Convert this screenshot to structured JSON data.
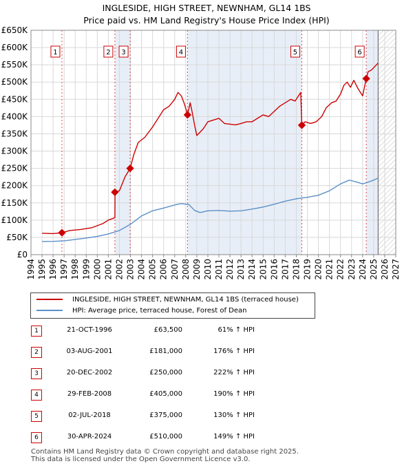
{
  "title": {
    "line1": "INGLESIDE, HIGH STREET, NEWNHAM, GL14 1BS",
    "line2": "Price paid vs. HM Land Registry's House Price Index (HPI)"
  },
  "chart_data": {
    "type": "line",
    "ylim": [
      0,
      650000
    ],
    "xlim": [
      1994,
      2027
    ],
    "y_ticks": [
      0,
      50000,
      100000,
      150000,
      200000,
      250000,
      300000,
      350000,
      400000,
      450000,
      500000,
      550000,
      600000,
      650000
    ],
    "y_tick_labels": [
      "£0",
      "£50K",
      "£100K",
      "£150K",
      "£200K",
      "£250K",
      "£300K",
      "£350K",
      "£400K",
      "£450K",
      "£500K",
      "£550K",
      "£600K",
      "£650K"
    ],
    "x_ticks": [
      1994,
      1995,
      1996,
      1997,
      1998,
      1999,
      2000,
      2001,
      2002,
      2003,
      2004,
      2005,
      2006,
      2007,
      2008,
      2009,
      2010,
      2011,
      2012,
      2013,
      2014,
      2015,
      2016,
      2017,
      2018,
      2019,
      2020,
      2021,
      2022,
      2023,
      2024,
      2025,
      2026,
      2027
    ],
    "data_end_year": 2025.4,
    "grid": true,
    "colors": {
      "property": "#cc0000",
      "hpi": "#5b8fc9",
      "plot_bg": "#ffffff",
      "band": "#e8eef7",
      "hatch": "#bbbbbb"
    },
    "series": [
      {
        "name": "INGLESIDE, HIGH STREET, NEWNHAM, GL14 1BS (terraced house)",
        "x": [
          1995.0,
          1996.0,
          1996.8,
          1997.5,
          1998.5,
          1999.5,
          2000.5,
          2001.0,
          2001.59,
          2001.6,
          2002.0,
          2002.5,
          2002.97,
          2003.3,
          2003.7,
          2004.3,
          2005.0,
          2005.5,
          2006.0,
          2006.5,
          2007.0,
          2007.3,
          2007.6,
          2007.9,
          2008.16,
          2008.4,
          2008.6,
          2008.8,
          2009.0,
          2009.3,
          2009.6,
          2010.0,
          2010.5,
          2011.0,
          2011.5,
          2012.0,
          2012.5,
          2013.0,
          2013.5,
          2014.0,
          2014.5,
          2015.0,
          2015.5,
          2016.0,
          2016.5,
          2017.0,
          2017.5,
          2017.9,
          2018.4,
          2018.5,
          2018.8,
          2019.3,
          2019.8,
          2020.3,
          2020.7,
          2021.2,
          2021.6,
          2022.0,
          2022.3,
          2022.6,
          2022.9,
          2023.2,
          2023.6,
          2024.0,
          2024.33,
          2024.5,
          2024.8,
          2025.1,
          2025.4
        ],
        "values": [
          62000,
          61000,
          63500,
          70000,
          73000,
          78000,
          90000,
          100000,
          107000,
          181000,
          185000,
          225000,
          250000,
          290000,
          325000,
          340000,
          370000,
          395000,
          420000,
          430000,
          450000,
          470000,
          460000,
          435000,
          405000,
          440000,
          410000,
          375000,
          345000,
          355000,
          365000,
          385000,
          390000,
          395000,
          380000,
          378000,
          376000,
          380000,
          385000,
          385000,
          395000,
          405000,
          400000,
          415000,
          430000,
          440000,
          450000,
          445000,
          470000,
          375000,
          385000,
          380000,
          385000,
          400000,
          425000,
          440000,
          445000,
          465000,
          490000,
          500000,
          485000,
          505000,
          480000,
          460000,
          510000,
          530000,
          535000,
          545000,
          555000
        ]
      },
      {
        "name": "HPI: Average price, terraced house, Forest of Dean",
        "x": [
          1995.0,
          1996.0,
          1997.0,
          1998.0,
          1999.0,
          2000.0,
          2001.0,
          2002.0,
          2003.0,
          2004.0,
          2005.0,
          2006.0,
          2007.0,
          2007.6,
          2008.3,
          2008.8,
          2009.3,
          2010.0,
          2011.0,
          2012.0,
          2013.0,
          2014.0,
          2015.0,
          2016.0,
          2017.0,
          2018.0,
          2019.0,
          2020.0,
          2021.0,
          2022.0,
          2022.8,
          2023.5,
          2024.0,
          2024.5,
          2025.0,
          2025.4
        ],
        "values": [
          38000,
          38500,
          40000,
          44000,
          48000,
          53000,
          60000,
          70000,
          88000,
          112000,
          127000,
          135000,
          144000,
          148000,
          145000,
          128000,
          122000,
          127000,
          128000,
          126000,
          127000,
          132000,
          138000,
          146000,
          155000,
          162000,
          166000,
          172000,
          185000,
          205000,
          216000,
          210000,
          205000,
          210000,
          216000,
          222000
        ]
      }
    ],
    "sale_points": [
      {
        "label": "1",
        "x": 1996.8,
        "value": 63500
      },
      {
        "label": "2",
        "x": 2001.59,
        "value": 181000
      },
      {
        "label": "3",
        "x": 2002.97,
        "value": 250000
      },
      {
        "label": "4",
        "x": 2008.16,
        "value": 405000
      },
      {
        "label": "5",
        "x": 2018.5,
        "value": 375000
      },
      {
        "label": "6",
        "x": 2024.33,
        "value": 510000
      }
    ]
  },
  "legend": {
    "property_label": "INGLESIDE, HIGH STREET, NEWNHAM, GL14 1BS (terraced house)",
    "hpi_label": "HPI: Average price, terraced house, Forest of Dean"
  },
  "sales": [
    {
      "num": "1",
      "date": "21-OCT-1996",
      "price": "£63,500",
      "hpi": "61% ↑ HPI"
    },
    {
      "num": "2",
      "date": "03-AUG-2001",
      "price": "£181,000",
      "hpi": "176% ↑ HPI"
    },
    {
      "num": "3",
      "date": "20-DEC-2002",
      "price": "£250,000",
      "hpi": "222% ↑ HPI"
    },
    {
      "num": "4",
      "date": "29-FEB-2008",
      "price": "£405,000",
      "hpi": "190% ↑ HPI"
    },
    {
      "num": "5",
      "date": "02-JUL-2018",
      "price": "£375,000",
      "hpi": "130% ↑ HPI"
    },
    {
      "num": "6",
      "date": "30-APR-2024",
      "price": "£510,000",
      "hpi": "149% ↑ HPI"
    }
  ],
  "footer": {
    "line1": "Contains HM Land Registry data © Crown copyright and database right 2025.",
    "line2": "This data is licensed under the Open Government Licence v3.0."
  }
}
